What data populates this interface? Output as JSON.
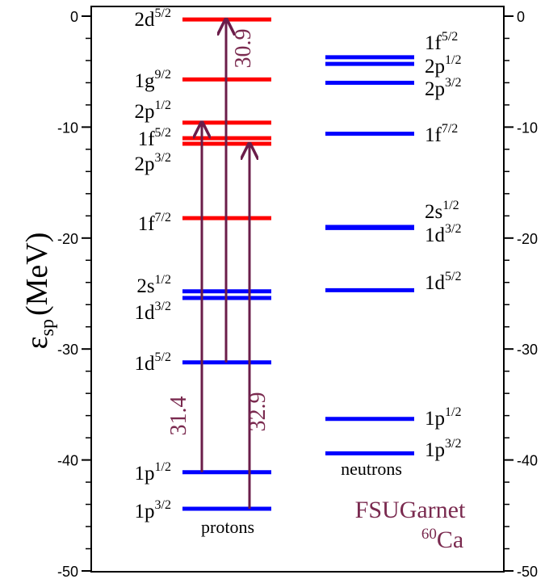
{
  "chart_data": {
    "type": "level-scheme",
    "ylabel": {
      "symbol": "ε",
      "subscript": "sp",
      "unit": "(MeV)"
    },
    "ylim": [
      -50,
      0
    ],
    "yticks": [
      0,
      -10,
      -20,
      -30,
      -40,
      -50
    ],
    "yticks_labels": [
      "0",
      "-10",
      "-20",
      "-30",
      "-40",
      "-50"
    ],
    "model": "FSUGarnet",
    "nucleus": {
      "mass": "60",
      "element": "Ca"
    },
    "colors": {
      "proton_bound": "#ff0000",
      "proton_deep": "#0000ff",
      "neutron": "#0000ff",
      "transition": "#6b1d4a",
      "annotation": "#7a2a4f"
    },
    "groups": [
      {
        "name": "protons",
        "levels": [
          {
            "orbital": "2d",
            "j": "5/2",
            "energy": -0.3,
            "color": "red"
          },
          {
            "orbital": "1g",
            "j": "9/2",
            "energy": -5.7,
            "color": "red"
          },
          {
            "orbital": "2p",
            "j": "1/2",
            "energy": -9.6,
            "color": "red"
          },
          {
            "orbital": "1f",
            "j": "5/2",
            "energy": -11.0,
            "color": "red"
          },
          {
            "orbital": "2p",
            "j": "3/2",
            "energy": -11.5,
            "color": "red"
          },
          {
            "orbital": "1f",
            "j": "7/2",
            "energy": -18.2,
            "color": "red"
          },
          {
            "orbital": "2s",
            "j": "1/2",
            "energy": -24.8,
            "color": "blue"
          },
          {
            "orbital": "1d",
            "j": "3/2",
            "energy": -25.4,
            "color": "blue"
          },
          {
            "orbital": "1d",
            "j": "5/2",
            "energy": -31.2,
            "color": "blue"
          },
          {
            "orbital": "1p",
            "j": "1/2",
            "energy": -41.1,
            "color": "blue"
          },
          {
            "orbital": "1p",
            "j": "3/2",
            "energy": -44.4,
            "color": "blue"
          }
        ]
      },
      {
        "name": "neutrons",
        "levels": [
          {
            "orbital": "1f",
            "j": "5/2",
            "energy": -3.7,
            "color": "blue"
          },
          {
            "orbital": "2p",
            "j": "1/2",
            "energy": -4.3,
            "color": "blue"
          },
          {
            "orbital": "2p",
            "j": "3/2",
            "energy": -6.0,
            "color": "blue"
          },
          {
            "orbital": "1f",
            "j": "7/2",
            "energy": -10.6,
            "color": "blue"
          },
          {
            "orbital": "2s",
            "j": "1/2",
            "energy": -19.0,
            "color": "blue"
          },
          {
            "orbital": "1d",
            "j": "3/2",
            "energy": -19.1,
            "color": "blue"
          },
          {
            "orbital": "1d",
            "j": "5/2",
            "energy": -24.7,
            "color": "blue"
          },
          {
            "orbital": "1p",
            "j": "1/2",
            "energy": -36.3,
            "color": "blue"
          },
          {
            "orbital": "1p",
            "j": "3/2",
            "energy": -39.4,
            "color": "blue"
          }
        ]
      }
    ],
    "transitions": [
      {
        "label": "31.4",
        "from": -41.1,
        "to": -9.6
      },
      {
        "label": "30.9",
        "from": -31.2,
        "to": -0.3
      },
      {
        "label": "32.9",
        "from": -44.4,
        "to": -11.5
      }
    ]
  }
}
